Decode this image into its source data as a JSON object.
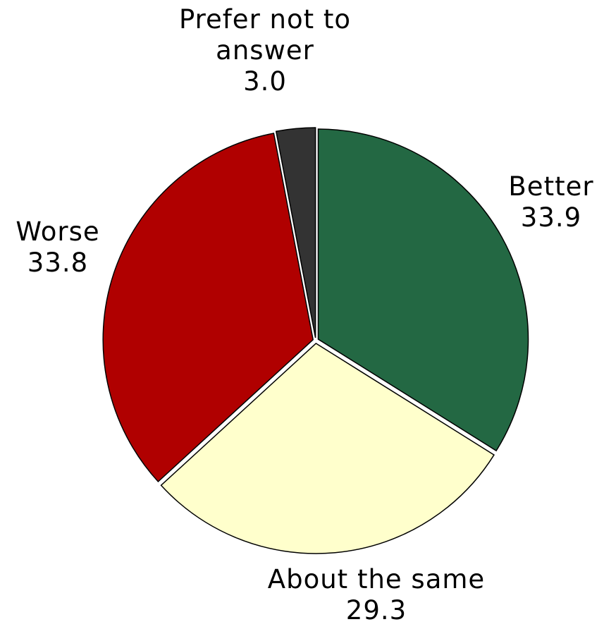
{
  "chart_data": {
    "type": "pie",
    "title": "",
    "start_angle_deg": 90,
    "direction": "clockwise",
    "slices": [
      {
        "name": "Better",
        "value": 33.9,
        "value_label": "33.9",
        "color": "#236843"
      },
      {
        "name": "About the same",
        "value": 29.3,
        "value_label": "29.3",
        "color": "#FFFFCC"
      },
      {
        "name": "Worse",
        "value": 33.8,
        "value_label": "33.8",
        "color": "#B00000"
      },
      {
        "name": "Prefer not to answer",
        "name_lines": [
          "Prefer not to",
          "answer"
        ],
        "value": 3.0,
        "value_label": "3.0",
        "color": "#333333"
      }
    ]
  }
}
